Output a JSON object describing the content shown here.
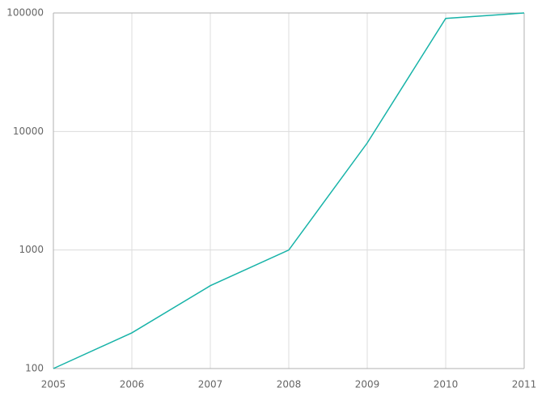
{
  "chart_data": {
    "type": "line",
    "x": [
      2005,
      2006,
      2007,
      2008,
      2009,
      2010,
      2011
    ],
    "values": [
      100,
      200,
      500,
      1000,
      8000,
      90000,
      100000
    ],
    "color": "#17b3a8",
    "xlim": [
      2005,
      2011
    ],
    "xticks": [
      2005,
      2006,
      2007,
      2008,
      2009,
      2010,
      2011
    ],
    "ylim": [
      100,
      100000
    ],
    "yticks": [
      100,
      1000,
      10000,
      100000
    ],
    "log_y": true,
    "grid": true
  }
}
